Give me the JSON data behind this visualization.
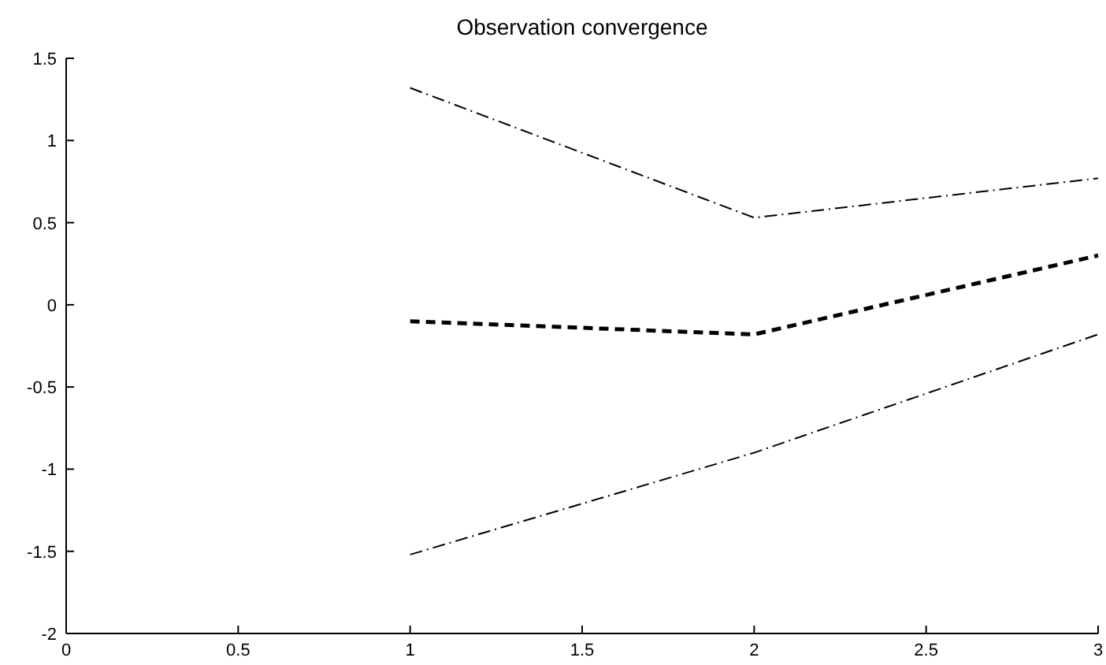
{
  "chart_data": {
    "type": "line",
    "title": "Observation convergence",
    "x": [
      1,
      2,
      3
    ],
    "series": [
      {
        "color": "#000000",
        "values": [
          -0.1,
          -0.18,
          0.3
        ],
        "line_style": "dashed"
      },
      {
        "color": "#000000",
        "values": [
          1.32,
          0.53,
          0.77
        ],
        "line_style": "dashed"
      },
      {
        "color": "#000000",
        "values": [
          -1.52,
          -0.9,
          -0.18
        ],
        "line_style": "dashed"
      }
    ],
    "xlim": [
      0,
      3
    ],
    "xticks": [
      0,
      0.5,
      1,
      1.5,
      2,
      2.5,
      3
    ],
    "ylim": [
      -2,
      1.5
    ],
    "yticks": [
      -2,
      -1.5,
      -1,
      -0.5,
      0,
      0.5,
      1,
      1.5
    ],
    "grid": false,
    "marker": "none"
  }
}
